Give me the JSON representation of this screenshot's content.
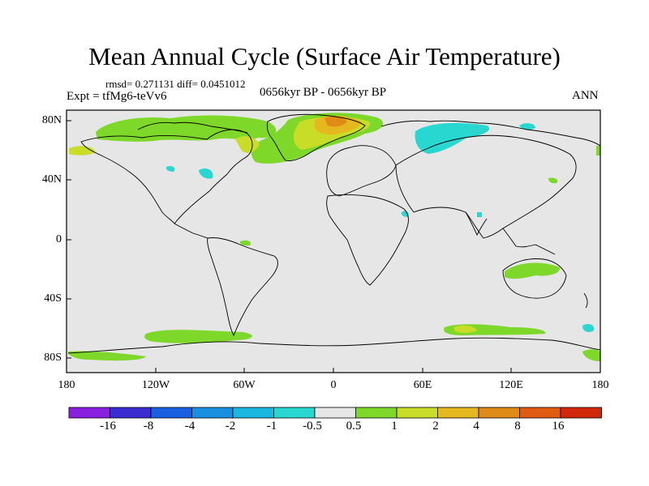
{
  "title": "Mean Annual Cycle (Surface Air Temperature)",
  "stats": "rmsd= 0.271131 diff= 0.0451012",
  "experiment": "Expt = tfMg6-teVv6",
  "period": "0656kyr BP - 0656kyr BP",
  "season": "ANN",
  "lat_labels": [
    "80N",
    "40N",
    "0",
    "40S",
    "80S"
  ],
  "lon_labels": [
    "180",
    "120W",
    "60W",
    "0",
    "60E",
    "120E",
    "180"
  ],
  "colorbar": {
    "labels": [
      "-16",
      "-8",
      "-4",
      "-2",
      "-1",
      "-0.5",
      "0.5",
      "1",
      "2",
      "4",
      "8",
      "16"
    ],
    "colors": [
      "#8a1fe0",
      "#3a2cd0",
      "#1a5fe0",
      "#1a8fe0",
      "#1ab8e0",
      "#28d8d0",
      "#e6e6e6",
      "#7ed82a",
      "#c8dc28",
      "#e6b820",
      "#e08a18",
      "#e05a10",
      "#d02808"
    ]
  },
  "colors": {
    "background_field": "#e6e6e6",
    "coast": "#000000"
  }
}
